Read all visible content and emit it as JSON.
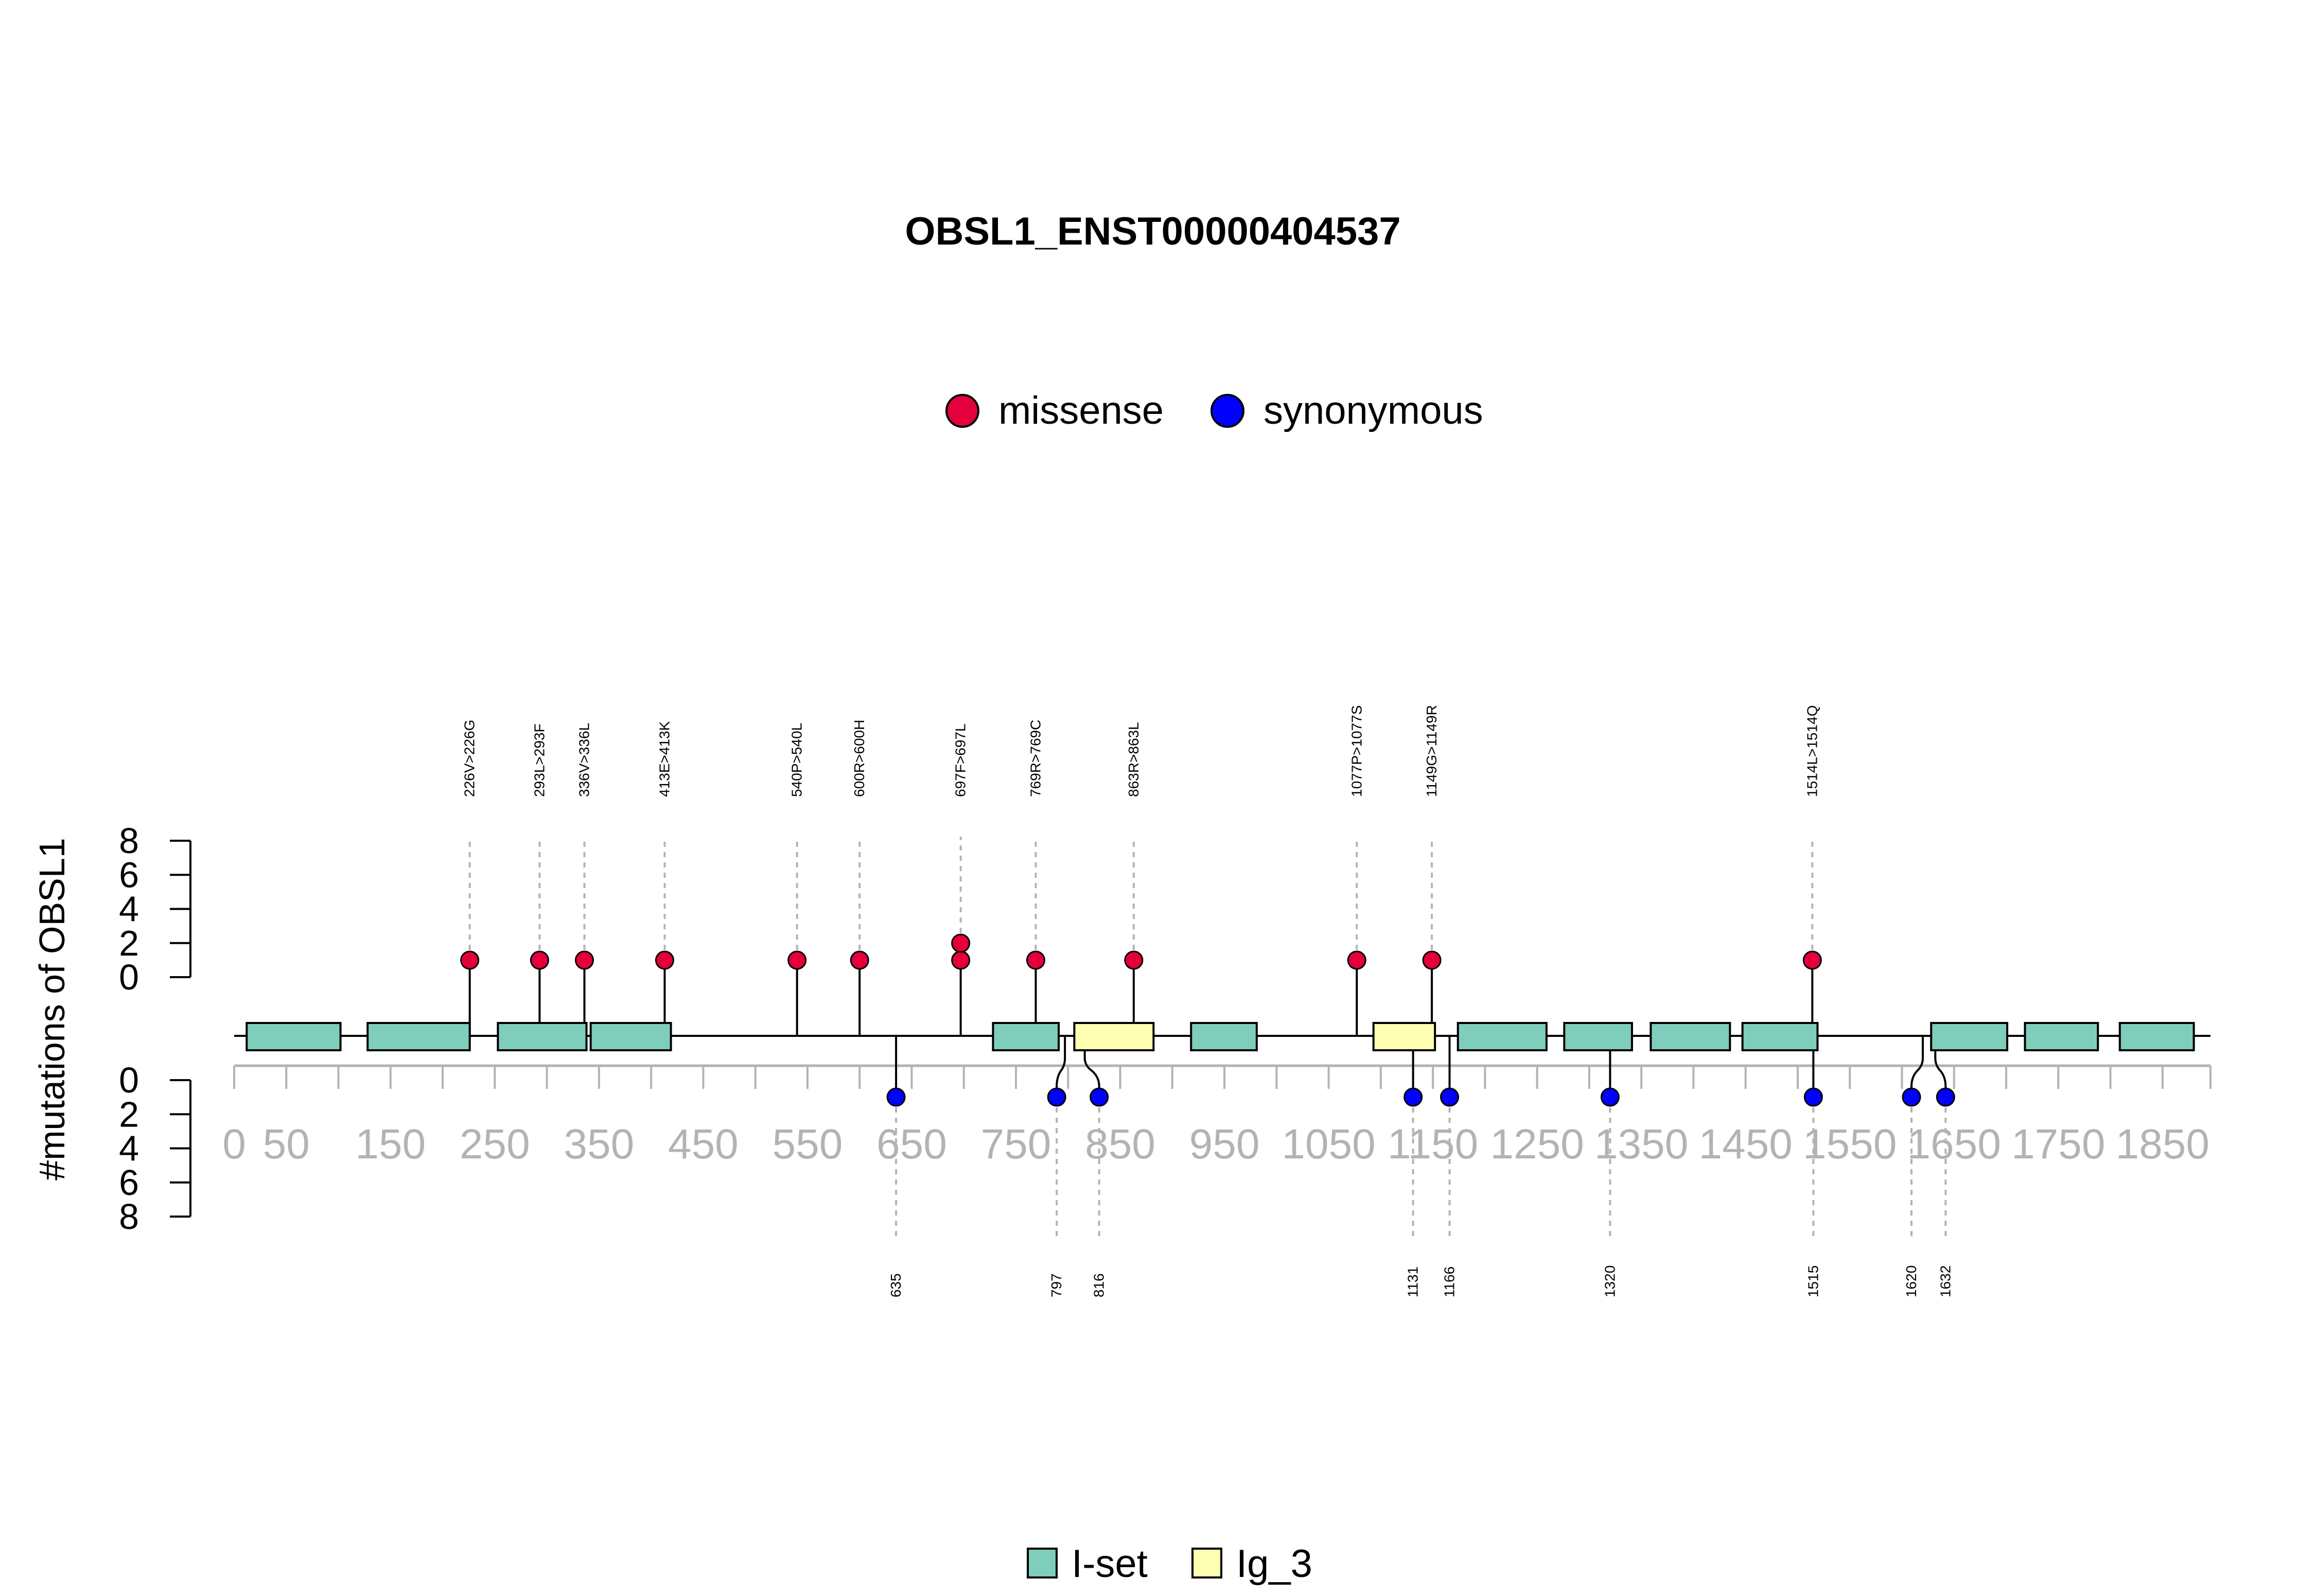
{
  "chart_data": {
    "type": "lollipop",
    "title": "OBSL1_ENST00000404537",
    "ylabel": "#mutations of OBSL1",
    "y_ticks_top": [
      "0",
      "2",
      "4",
      "6",
      "8"
    ],
    "y_ticks_bottom": [
      "0",
      "2",
      "4",
      "6",
      "8"
    ],
    "xlim": [
      0,
      1896
    ],
    "x_ticks": [
      {
        "value": 0,
        "label": "0"
      },
      {
        "value": 50,
        "label": "50"
      },
      {
        "value": 150,
        "label": "150"
      },
      {
        "value": 250,
        "label": "250"
      },
      {
        "value": 350,
        "label": "350"
      },
      {
        "value": 450,
        "label": "450"
      },
      {
        "value": 550,
        "label": "550"
      },
      {
        "value": 650,
        "label": "650"
      },
      {
        "value": 750,
        "label": "750"
      },
      {
        "value": 850,
        "label": "850"
      },
      {
        "value": 950,
        "label": "950"
      },
      {
        "value": 1050,
        "label": "1050"
      },
      {
        "value": 1150,
        "label": "1150"
      },
      {
        "value": 1250,
        "label": "1250"
      },
      {
        "value": 1350,
        "label": "1350"
      },
      {
        "value": 1450,
        "label": "1450"
      },
      {
        "value": 1550,
        "label": "1550"
      },
      {
        "value": 1650,
        "label": "1650"
      },
      {
        "value": 1750,
        "label": "1750"
      },
      {
        "value": 1850,
        "label": "1850"
      }
    ],
    "legend_mutations": [
      {
        "name": "missense",
        "color": "#e4003a"
      },
      {
        "name": "synonymous",
        "color": "#0000ff"
      }
    ],
    "legend_domains": [
      {
        "name": "I-set",
        "color": "#7fcdbb"
      },
      {
        "name": "Ig_3",
        "color": "#ffffb3"
      }
    ],
    "domains": [
      {
        "name": "I-set",
        "start": 12,
        "end": 102
      },
      {
        "name": "I-set",
        "start": 128,
        "end": 226
      },
      {
        "name": "I-set",
        "start": 253,
        "end": 338
      },
      {
        "name": "I-set",
        "start": 342,
        "end": 419
      },
      {
        "name": "I-set",
        "start": 728,
        "end": 791
      },
      {
        "name": "Ig_3",
        "start": 806,
        "end": 882
      },
      {
        "name": "I-set",
        "start": 918,
        "end": 981
      },
      {
        "name": "Ig_3",
        "start": 1093,
        "end": 1152
      },
      {
        "name": "I-set",
        "start": 1174,
        "end": 1259
      },
      {
        "name": "I-set",
        "start": 1276,
        "end": 1341
      },
      {
        "name": "I-set",
        "start": 1359,
        "end": 1435
      },
      {
        "name": "I-set",
        "start": 1447,
        "end": 1519
      },
      {
        "name": "I-set",
        "start": 1628,
        "end": 1701
      },
      {
        "name": "I-set",
        "start": 1718,
        "end": 1788
      },
      {
        "name": "I-set",
        "start": 1809,
        "end": 1880
      }
    ],
    "missense": [
      {
        "pos": 226,
        "count": 1,
        "label": "226V>226G"
      },
      {
        "pos": 293,
        "count": 1,
        "label": "293L>293F"
      },
      {
        "pos": 336,
        "count": 1,
        "label": "336V>336L"
      },
      {
        "pos": 413,
        "count": 1,
        "label": "413E>413K"
      },
      {
        "pos": 540,
        "count": 1,
        "label": "540P>540L"
      },
      {
        "pos": 600,
        "count": 1,
        "label": "600R>600H"
      },
      {
        "pos": 697,
        "count": 2,
        "label": "697F>697L"
      },
      {
        "pos": 769,
        "count": 1,
        "label": "769R>769C"
      },
      {
        "pos": 863,
        "count": 1,
        "label": "863R>863L"
      },
      {
        "pos": 1077,
        "count": 1,
        "label": "1077P>1077S"
      },
      {
        "pos": 1149,
        "count": 1,
        "label": "1149G>1149R"
      },
      {
        "pos": 1514,
        "count": 1,
        "label": "1514L>1514Q"
      }
    ],
    "synonymous": [
      {
        "pos": 635,
        "count": 1,
        "label": "635"
      },
      {
        "pos": 797,
        "count": 1,
        "label": "797"
      },
      {
        "pos": 816,
        "count": 1,
        "label": "816"
      },
      {
        "pos": 1131,
        "count": 1,
        "label": "1131"
      },
      {
        "pos": 1166,
        "count": 1,
        "label": "1166"
      },
      {
        "pos": 1320,
        "count": 1,
        "label": "1320"
      },
      {
        "pos": 1515,
        "count": 1,
        "label": "1515"
      },
      {
        "pos": 1620,
        "count": 1,
        "label": "1620"
      },
      {
        "pos": 1632,
        "count": 1,
        "label": "1632"
      }
    ]
  }
}
